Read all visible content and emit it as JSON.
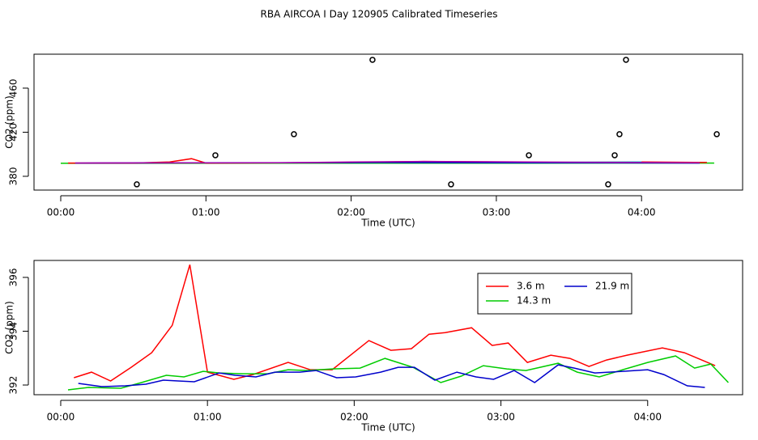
{
  "title": "RBA AIRCOA I  Day 120905  Calibrated Timeseries",
  "chart_data": [
    {
      "type": "line",
      "xlabel": "Time (UTC)",
      "ylabel": "CO2 (ppm)",
      "xlim": [
        -0.184,
        4.696
      ],
      "ylim": [
        367.5,
        490.8
      ],
      "xticks": [
        {
          "value": 0,
          "label": "00:00"
        },
        {
          "value": 1,
          "label": "01:00"
        },
        {
          "value": 2,
          "label": "02:00"
        },
        {
          "value": 3,
          "label": "03:00"
        },
        {
          "value": 4,
          "label": "04:00"
        }
      ],
      "yticks": [
        380,
        420,
        460
      ],
      "series": [
        {
          "color": "#00cc00",
          "x": [
            0.0,
            4.5
          ],
          "values": [
            391.8,
            392
          ]
        },
        {
          "color": "#ff0000",
          "x": [
            0.05,
            0.5,
            0.75,
            0.9,
            1.0,
            2.0,
            2.5,
            3.0,
            3.5,
            4.0,
            4.45
          ],
          "values": [
            392,
            392,
            393,
            396,
            392,
            392.5,
            393.5,
            393,
            392.5,
            393,
            392.5
          ]
        },
        {
          "color": "#00cccc",
          "x": [
            2.0,
            3.0,
            4.0
          ],
          "values": [
            393,
            392.6,
            393
          ]
        },
        {
          "color": "#0000cc",
          "x": [
            0.1,
            2.2,
            4.4
          ],
          "values": [
            392,
            392.5,
            392
          ]
        },
        {
          "color": "#aa00aa",
          "x": [
            0.1,
            1.5,
            2.0,
            2.5,
            3.0,
            3.5,
            4.0,
            4.4
          ],
          "values": [
            392,
            392.3,
            393,
            393.5,
            393.2,
            392.8,
            392.5,
            392.3
          ]
        }
      ],
      "points": {
        "color": "#000000",
        "x": [
          0.524,
          1.065,
          1.606,
          2.147,
          2.688,
          3.224,
          3.77,
          3.815,
          3.848,
          3.893,
          4.518
        ],
        "values": [
          372.7,
          399.1,
          418.2,
          485.7,
          372.7,
          399.1,
          372.7,
          399.1,
          418.2,
          485.7,
          418.2
        ]
      }
    },
    {
      "type": "line",
      "xlabel": "Time (UTC)",
      "ylabel": "CO2 (ppm)",
      "xlim": [
        -0.182,
        4.647
      ],
      "ylim": [
        391.64,
        396.63
      ],
      "xticks": [
        {
          "value": 0,
          "label": "00:00"
        },
        {
          "value": 1,
          "label": "01:00"
        },
        {
          "value": 2,
          "label": "02:00"
        },
        {
          "value": 3,
          "label": "03:00"
        },
        {
          "value": 4,
          "label": "04:00"
        }
      ],
      "yticks": [
        392,
        394,
        396
      ],
      "series": [
        {
          "name": "3.6 m",
          "color": "#ff0000",
          "x": [
            0.09,
            0.21,
            0.34,
            0.48,
            0.62,
            0.76,
            0.88,
            1.0,
            1.18,
            1.31,
            1.55,
            1.7,
            1.85,
            2.1,
            2.25,
            2.39,
            2.51,
            2.62,
            2.8,
            2.94,
            3.05,
            3.18,
            3.34,
            3.47,
            3.6,
            3.72,
            3.86,
            4.1,
            4.25,
            4.46
          ],
          "values": [
            392.27,
            392.48,
            392.15,
            392.66,
            393.2,
            394.22,
            396.47,
            392.48,
            392.21,
            392.39,
            392.84,
            392.57,
            392.57,
            393.65,
            393.29,
            393.35,
            393.89,
            393.95,
            394.13,
            393.47,
            393.56,
            392.84,
            393.11,
            392.99,
            392.69,
            392.93,
            393.11,
            393.38,
            393.2,
            392.72
          ]
        },
        {
          "name": "14.3 m",
          "color": "#00cc00",
          "x": [
            0.05,
            0.19,
            0.41,
            0.55,
            0.72,
            0.84,
            0.97,
            1.08,
            1.24,
            1.41,
            1.55,
            1.68,
            1.85,
            2.04,
            2.21,
            2.4,
            2.59,
            2.73,
            2.88,
            3.04,
            3.17,
            3.39,
            3.52,
            3.67,
            3.83,
            4.0,
            4.19,
            4.32,
            4.43,
            4.55
          ],
          "values": [
            391.82,
            391.91,
            391.88,
            392.09,
            392.36,
            392.3,
            392.51,
            392.45,
            392.42,
            392.42,
            392.57,
            392.54,
            392.6,
            392.63,
            392.99,
            392.66,
            392.09,
            392.33,
            392.72,
            392.6,
            392.54,
            392.81,
            392.48,
            392.3,
            392.57,
            392.84,
            393.08,
            392.63,
            392.78,
            392.09
          ]
        },
        {
          "name": "21.9 m",
          "color": "#0000cc",
          "x": [
            0.12,
            0.28,
            0.44,
            0.58,
            0.7,
            0.8,
            0.91,
            1.08,
            1.19,
            1.33,
            1.46,
            1.63,
            1.74,
            1.88,
            2.01,
            2.18,
            2.3,
            2.41,
            2.55,
            2.7,
            2.83,
            2.95,
            3.09,
            3.23,
            3.39,
            3.5,
            3.64,
            3.83,
            4.0,
            4.11,
            4.27,
            4.39
          ],
          "values": [
            392.06,
            391.94,
            391.97,
            392.03,
            392.18,
            392.15,
            392.12,
            392.45,
            392.36,
            392.3,
            392.48,
            392.48,
            392.54,
            392.27,
            392.3,
            392.48,
            392.66,
            392.66,
            392.18,
            392.48,
            392.3,
            392.21,
            392.54,
            392.09,
            392.75,
            392.63,
            392.45,
            392.51,
            392.57,
            392.39,
            391.97,
            391.91
          ]
        }
      ],
      "legend": "top-right"
    }
  ]
}
